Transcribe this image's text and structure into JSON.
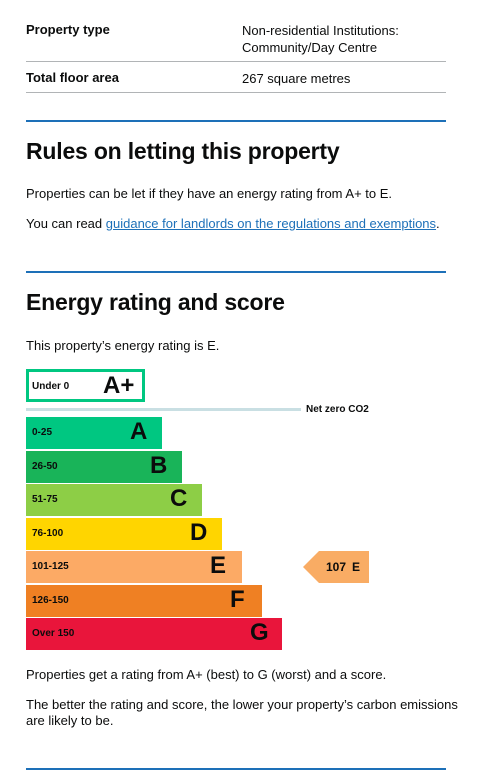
{
  "summary": {
    "property_type_label": "Property type",
    "property_type_value_line1": "Non-residential Institutions:",
    "property_type_value_line2": "Community/Day Centre",
    "floor_area_label": "Total floor area",
    "floor_area_value": "267 square metres"
  },
  "letting": {
    "heading": "Rules on letting this property",
    "para1": "Properties can be let if they have an energy rating from A+ to E.",
    "para2_prefix": "You can read ",
    "para2_link": "guidance for landlords on the regulations and exemptions",
    "para2_suffix": "."
  },
  "rating": {
    "heading": "Energy rating and score",
    "intro": "This property’s energy rating is E.",
    "net_zero_label": "Net zero CO2",
    "current_score": "107",
    "current_letter": "E",
    "indicator_color": "#f9ac64",
    "footnote1": "Properties get a rating from A+ (best) to G (worst) and a score.",
    "footnote2_line1": "The better the rating and score, the lower your property’s carbon emissions",
    "footnote2_line2": "are likely to be."
  },
  "chart_data": {
    "type": "bar",
    "categories": [
      "A+",
      "A",
      "B",
      "C",
      "D",
      "E",
      "F",
      "G"
    ],
    "ranges": [
      "Under 0",
      "0-25",
      "26-50",
      "51-75",
      "76-100",
      "101-125",
      "126-150",
      "Over 150"
    ],
    "colors": [
      "#00c781",
      "#00c781",
      "#19b459",
      "#8dce46",
      "#ffd500",
      "#fcaa65",
      "#ef8023",
      "#e9153b"
    ],
    "current": {
      "score": 107,
      "band": "E"
    }
  }
}
